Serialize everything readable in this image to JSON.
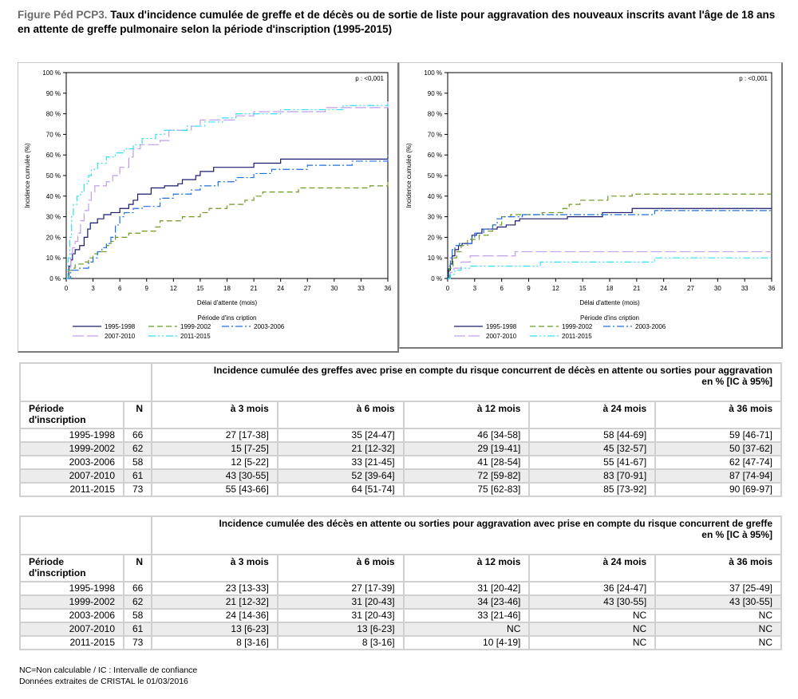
{
  "title": {
    "figure_label": "Figure Péd PCP3.",
    "text": " Taux d'incidence cumulée de greffe et de décès ou de sortie de liste pour aggravation des nouveaux inscrits avant l'âge de 18 ans en attente de greffe pulmonaire selon la période d'inscription (1995-2015)"
  },
  "colors": {
    "1995-1998": "#1a1a6e",
    "1999-2002": "#6b9a1e",
    "2003-2006": "#1e6fe0",
    "2007-2010": "#c09ef0",
    "2011-2015": "#30e0f0"
  },
  "chart_data": [
    {
      "type": "line",
      "step": true,
      "title": "",
      "annotation": "p : <0,001",
      "xlabel": "Délai d'attente (mois)",
      "ylabel": "Incidence cumulée (%)",
      "xlim": [
        0,
        36
      ],
      "ylim": [
        0,
        100
      ],
      "xticks": [
        0,
        3,
        6,
        9,
        12,
        15,
        18,
        21,
        24,
        27,
        30,
        33,
        36
      ],
      "yticks": [
        "0 %",
        "10 %",
        "20 %",
        "30 %",
        "40 %",
        "50 %",
        "60 %",
        "70 %",
        "80 %",
        "90 %",
        "100 %"
      ],
      "legend_title": "Période d'ins cription",
      "legend_position": "bottom",
      "series": [
        {
          "name": "1995-1998",
          "dash": "solid",
          "points": [
            [
              0,
              0
            ],
            [
              0.3,
              6
            ],
            [
              0.5,
              9
            ],
            [
              0.7,
              12
            ],
            [
              1,
              14
            ],
            [
              1.5,
              16
            ],
            [
              2,
              20
            ],
            [
              2.4,
              24
            ],
            [
              2.7,
              27
            ],
            [
              3.5,
              29
            ],
            [
              4.2,
              31
            ],
            [
              5,
              32
            ],
            [
              6,
              34
            ],
            [
              7,
              36
            ],
            [
              7.5,
              38
            ],
            [
              8,
              41
            ],
            [
              9.5,
              44
            ],
            [
              11,
              45
            ],
            [
              12.5,
              46
            ],
            [
              13,
              48
            ],
            [
              14.5,
              50
            ],
            [
              15,
              52
            ],
            [
              16.5,
              54
            ],
            [
              21,
              56
            ],
            [
              24,
              58
            ],
            [
              36,
              58
            ]
          ]
        },
        {
          "name": "1999-2002",
          "dash": "long",
          "points": [
            [
              0,
              0
            ],
            [
              0.3,
              4
            ],
            [
              0.7,
              5
            ],
            [
              1,
              7
            ],
            [
              2,
              8
            ],
            [
              2.5,
              10
            ],
            [
              3,
              12
            ],
            [
              3.5,
              13
            ],
            [
              4.5,
              16
            ],
            [
              5,
              18
            ],
            [
              5.5,
              20
            ],
            [
              7,
              22
            ],
            [
              8.5,
              23
            ],
            [
              10,
              25
            ],
            [
              10.5,
              28
            ],
            [
              13,
              30
            ],
            [
              15,
              32
            ],
            [
              16,
              34
            ],
            [
              18,
              36
            ],
            [
              20,
              38
            ],
            [
              21,
              40
            ],
            [
              22,
              42
            ],
            [
              26,
              44
            ],
            [
              34,
              45
            ],
            [
              36,
              48
            ]
          ]
        },
        {
          "name": "2003-2006",
          "dash": "dashdot",
          "points": [
            [
              0,
              0
            ],
            [
              0.5,
              4
            ],
            [
              1.5,
              5
            ],
            [
              2.5,
              8
            ],
            [
              3,
              10
            ],
            [
              3.5,
              13
            ],
            [
              4,
              15
            ],
            [
              4.5,
              17
            ],
            [
              5,
              20
            ],
            [
              5.5,
              26
            ],
            [
              6,
              30
            ],
            [
              6.5,
              32
            ],
            [
              7.5,
              34
            ],
            [
              8.5,
              35
            ],
            [
              10.5,
              39
            ],
            [
              12,
              41
            ],
            [
              14,
              43
            ],
            [
              15,
              45
            ],
            [
              17,
              47
            ],
            [
              19,
              49
            ],
            [
              21,
              51
            ],
            [
              23,
              53
            ],
            [
              27,
              55
            ],
            [
              32,
              57
            ],
            [
              36,
              60
            ]
          ]
        },
        {
          "name": "2007-2010",
          "dash": "longdash",
          "points": [
            [
              0,
              0
            ],
            [
              0.2,
              5
            ],
            [
              0.5,
              12
            ],
            [
              0.7,
              15
            ],
            [
              1,
              18
            ],
            [
              1.3,
              22
            ],
            [
              1.6,
              28
            ],
            [
              2,
              33
            ],
            [
              2.5,
              38
            ],
            [
              2.8,
              42
            ],
            [
              3.2,
              45
            ],
            [
              4.5,
              47
            ],
            [
              5.2,
              50
            ],
            [
              6,
              54
            ],
            [
              7,
              59
            ],
            [
              7.5,
              63
            ],
            [
              8.3,
              65
            ],
            [
              10.5,
              67
            ],
            [
              11.5,
              72
            ],
            [
              14,
              74
            ],
            [
              15,
              77
            ],
            [
              19,
              79
            ],
            [
              21,
              81
            ],
            [
              29,
              83
            ],
            [
              36,
              86
            ]
          ]
        },
        {
          "name": "2011-2015",
          "dash": "dashdotdot",
          "points": [
            [
              0,
              0
            ],
            [
              0.2,
              10
            ],
            [
              0.4,
              20
            ],
            [
              0.6,
              30
            ],
            [
              0.8,
              36
            ],
            [
              1.2,
              40
            ],
            [
              1.6,
              42
            ],
            [
              2,
              46
            ],
            [
              2.5,
              50
            ],
            [
              2.8,
              53
            ],
            [
              3.5,
              56
            ],
            [
              4.5,
              59
            ],
            [
              5.5,
              61
            ],
            [
              6.5,
              63
            ],
            [
              7.5,
              65
            ],
            [
              8.5,
              68
            ],
            [
              10,
              70
            ],
            [
              11,
              72
            ],
            [
              13.5,
              74
            ],
            [
              15.5,
              76
            ],
            [
              17.5,
              78
            ],
            [
              19,
              80
            ],
            [
              24,
              82
            ],
            [
              31,
              84
            ],
            [
              36,
              85
            ]
          ]
        }
      ]
    },
    {
      "type": "line",
      "step": true,
      "title": "",
      "annotation": "p : <0,001",
      "xlabel": "Délai d'attente (mois)",
      "ylabel": "Incidence cumulée (%)",
      "xlim": [
        0,
        36
      ],
      "ylim": [
        0,
        100
      ],
      "xticks": [
        0,
        3,
        6,
        9,
        12,
        15,
        18,
        21,
        24,
        27,
        30,
        33,
        36
      ],
      "yticks": [
        "0 %",
        "10 %",
        "20 %",
        "30 %",
        "40 %",
        "50 %",
        "60 %",
        "70 %",
        "80 %",
        "90 %",
        "100 %"
      ],
      "legend_title": "Période d'ins cription",
      "legend_position": "bottom",
      "series": [
        {
          "name": "1995-1998",
          "dash": "solid",
          "points": [
            [
              0,
              0
            ],
            [
              0.1,
              4
            ],
            [
              0.3,
              7
            ],
            [
              0.5,
              11
            ],
            [
              0.8,
              14
            ],
            [
              1.2,
              16
            ],
            [
              1.6,
              17
            ],
            [
              2.7,
              21
            ],
            [
              3.2,
              22
            ],
            [
              3.8,
              24
            ],
            [
              5.5,
              25
            ],
            [
              6.5,
              26
            ],
            [
              7.5,
              28
            ],
            [
              8,
              29
            ],
            [
              13.3,
              30
            ],
            [
              17.2,
              32
            ],
            [
              20.5,
              34
            ],
            [
              36,
              35
            ]
          ]
        },
        {
          "name": "1999-2002",
          "dash": "long",
          "points": [
            [
              0,
              0
            ],
            [
              0.2,
              5
            ],
            [
              0.6,
              10
            ],
            [
              1,
              13
            ],
            [
              1.5,
              16
            ],
            [
              2.2,
              19
            ],
            [
              3.5,
              21
            ],
            [
              4.5,
              23
            ],
            [
              5,
              26
            ],
            [
              6,
              30
            ],
            [
              7,
              31
            ],
            [
              10.5,
              32
            ],
            [
              12.8,
              34
            ],
            [
              13.5,
              36
            ],
            [
              14.7,
              38
            ],
            [
              17.8,
              40
            ],
            [
              20.5,
              41
            ],
            [
              36,
              41
            ]
          ]
        },
        {
          "name": "2003-2006",
          "dash": "dashdot",
          "points": [
            [
              0,
              0
            ],
            [
              0.1,
              6
            ],
            [
              0.3,
              10
            ],
            [
              0.5,
              14
            ],
            [
              0.8,
              16
            ],
            [
              1.3,
              17
            ],
            [
              2.7,
              20
            ],
            [
              3,
              22
            ],
            [
              4,
              24
            ],
            [
              5,
              26
            ],
            [
              5.5,
              29
            ],
            [
              6,
              30
            ],
            [
              8.3,
              31
            ],
            [
              13,
              31
            ],
            [
              23,
              33
            ],
            [
              36,
              33
            ]
          ]
        },
        {
          "name": "2007-2010",
          "dash": "longdash",
          "points": [
            [
              0,
              0
            ],
            [
              0.3,
              3
            ],
            [
              0.7,
              5
            ],
            [
              1.5,
              8
            ],
            [
              2.5,
              11
            ],
            [
              7.5,
              13
            ],
            [
              36,
              13
            ]
          ]
        },
        {
          "name": "2011-2015",
          "dash": "dashdotdot",
          "points": [
            [
              0,
              0
            ],
            [
              0.3,
              2
            ],
            [
              0.8,
              4
            ],
            [
              1.5,
              5
            ],
            [
              2.5,
              6
            ],
            [
              10.3,
              8
            ],
            [
              23,
              10
            ],
            [
              36,
              10
            ]
          ]
        }
      ]
    }
  ],
  "tables": [
    {
      "super_header": "Incidence cumulée des greffes avec prise en compte du risque concurrent de décès en attente ou sorties pour aggravation",
      "unit": "en % [IC à 95%]",
      "col_period": "Période d'inscription",
      "col_n": "N",
      "cols": [
        "à 3 mois",
        "à 6 mois",
        "à 12 mois",
        "à 24 mois",
        "à 36 mois"
      ],
      "rows": [
        {
          "period": "1995-1998",
          "n": "66",
          "values": [
            "27 [17-38]",
            "35 [24-47]",
            "46 [34-58]",
            "58 [44-69]",
            "59 [46-71]"
          ]
        },
        {
          "period": "1999-2002",
          "n": "62",
          "values": [
            "15 [7-25]",
            "21 [12-32]",
            "29 [19-41]",
            "45 [32-57]",
            "50 [37-62]"
          ]
        },
        {
          "period": "2003-2006",
          "n": "58",
          "values": [
            "12 [5-22]",
            "33 [21-45]",
            "41 [28-54]",
            "55 [41-67]",
            "62 [47-74]"
          ]
        },
        {
          "period": "2007-2010",
          "n": "61",
          "values": [
            "43 [30-55]",
            "52 [39-64]",
            "72 [59-82]",
            "83 [70-91]",
            "87 [74-94]"
          ]
        },
        {
          "period": "2011-2015",
          "n": "73",
          "values": [
            "55 [43-66]",
            "64 [51-74]",
            "75 [62-83]",
            "85 [73-92]",
            "90 [69-97]"
          ]
        }
      ]
    },
    {
      "super_header": "Incidence cumulée des décès en attente ou sorties pour aggravation avec prise en compte du risque concurrent de greffe",
      "unit": "en % [IC à 95%]",
      "col_period": "Période d'inscription",
      "col_n": "N",
      "cols": [
        "à 3 mois",
        "à 6 mois",
        "à 12 mois",
        "à 24 mois",
        "à 36 mois"
      ],
      "rows": [
        {
          "period": "1995-1998",
          "n": "66",
          "values": [
            "23 [13-33]",
            "27 [17-39]",
            "31 [20-42]",
            "36 [24-47]",
            "37 [25-49]"
          ]
        },
        {
          "period": "1999-2002",
          "n": "62",
          "values": [
            "21 [12-32]",
            "31 [20-43]",
            "34 [23-46]",
            "43 [30-55]",
            "43 [30-55]"
          ]
        },
        {
          "period": "2003-2006",
          "n": "58",
          "values": [
            "24 [14-36]",
            "31 [20-43]",
            "33 [21-46]",
            "NC",
            "NC"
          ]
        },
        {
          "period": "2007-2010",
          "n": "61",
          "values": [
            "13 [6-23]",
            "13 [6-23]",
            "NC",
            "NC",
            "NC"
          ]
        },
        {
          "period": "2011-2015",
          "n": "73",
          "values": [
            "8 [3-16]",
            "8 [3-16]",
            "10 [4-19]",
            "NC",
            "NC"
          ]
        }
      ]
    }
  ],
  "notes": [
    "NC=Non calculable / IC : Intervalle de confiance",
    "Données extraites de CRISTAL le 01/03/2016"
  ]
}
